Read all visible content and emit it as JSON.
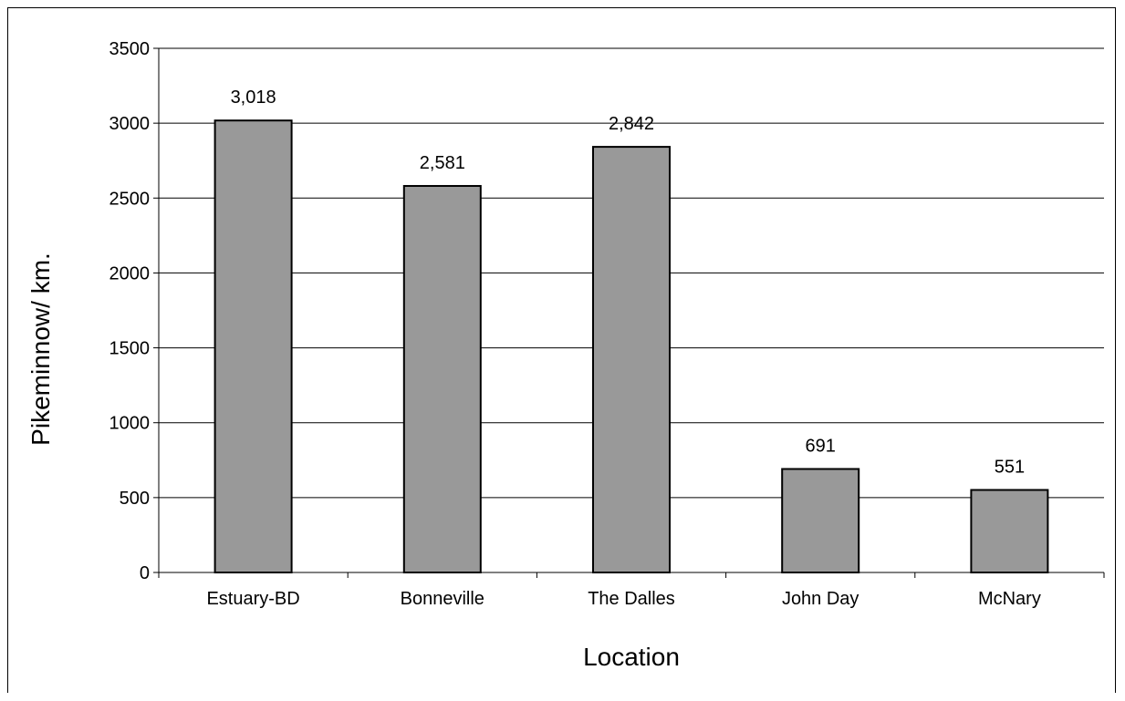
{
  "chart_data": {
    "type": "bar",
    "title": "",
    "xlabel": "Location",
    "ylabel": "Pikeminnow/ km.",
    "categories": [
      "Estuary-BD",
      "Bonneville",
      "The Dalles",
      "John Day",
      "McNary"
    ],
    "values": [
      3018,
      2581,
      2842,
      691,
      551
    ],
    "data_labels": [
      "3,018",
      "2,581",
      "2,842",
      "691",
      "551"
    ],
    "ylim": [
      0,
      3500
    ],
    "yticks": [
      "0",
      "500",
      "1000",
      "1500",
      "2000",
      "2500",
      "3000",
      "3500"
    ],
    "grid": true,
    "legend": "none",
    "colors": {
      "bar_fill": "#999999",
      "bar_stroke": "#000000",
      "grid": "#000000"
    }
  }
}
